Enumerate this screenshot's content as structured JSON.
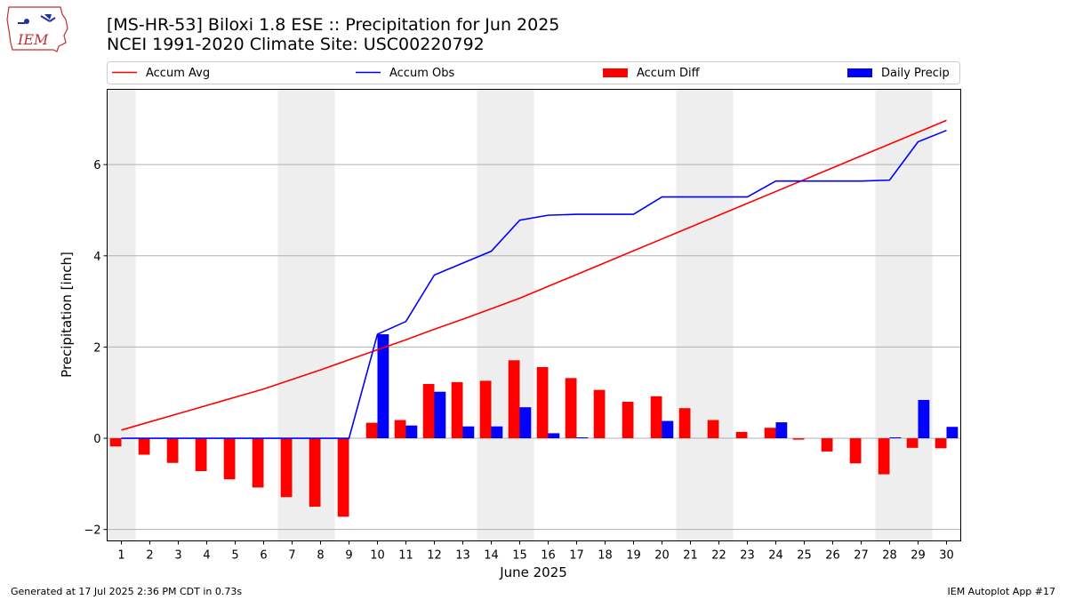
{
  "title_line1": "[MS-HR-53] Biloxi 1.8 ESE :: Precipitation for Jun 2025",
  "title_line2": "NCEI 1991-2020 Climate Site: USC00220792",
  "footer_left": "Generated at 17 Jul 2025 2:36 PM CDT in 0.73s",
  "footer_right": "IEM Autoplot App #17",
  "logo_text": "IEM",
  "colors": {
    "avg": "#ff0000",
    "obs": "#0000ff",
    "diff": "#ff0000",
    "daily": "#0000ff",
    "weekend_band": "#eeeeee",
    "grid": "#b0b0b0"
  },
  "chart_data": {
    "type": "bar",
    "xlabel": "June 2025",
    "ylabel": "Precipitation [inch]",
    "x": [
      1,
      2,
      3,
      4,
      5,
      6,
      7,
      8,
      9,
      10,
      11,
      12,
      13,
      14,
      15,
      16,
      17,
      18,
      19,
      20,
      21,
      22,
      23,
      24,
      25,
      26,
      27,
      28,
      29,
      30
    ],
    "xlim": [
      0.5,
      30.5
    ],
    "ylim": [
      -2.25,
      7.65
    ],
    "yticks": [
      -2,
      0,
      2,
      4,
      6
    ],
    "grid": true,
    "legend_position": "top, above plot",
    "weekend_bands": [
      [
        0.5,
        1.5
      ],
      [
        6.5,
        8.5
      ],
      [
        13.5,
        15.5
      ],
      [
        20.5,
        22.5
      ],
      [
        27.5,
        29.5
      ]
    ],
    "series": [
      {
        "name": "Accum Avg",
        "kind": "line",
        "values": [
          0.18,
          0.36,
          0.54,
          0.72,
          0.9,
          1.08,
          1.29,
          1.5,
          1.72,
          1.94,
          2.16,
          2.39,
          2.61,
          2.84,
          3.07,
          3.33,
          3.59,
          3.85,
          4.11,
          4.37,
          4.63,
          4.89,
          5.15,
          5.41,
          5.67,
          5.93,
          6.19,
          6.45,
          6.71,
          6.97
        ]
      },
      {
        "name": "Accum Obs",
        "kind": "line",
        "values": [
          0,
          0,
          0,
          0,
          0,
          0,
          0,
          0,
          0,
          2.28,
          2.56,
          3.58,
          3.84,
          4.1,
          4.78,
          4.89,
          4.91,
          4.91,
          4.91,
          5.29,
          5.29,
          5.29,
          5.29,
          5.64,
          5.64,
          5.64,
          5.64,
          5.66,
          6.5,
          6.75
        ]
      },
      {
        "name": "Accum Diff",
        "kind": "bar",
        "values": [
          -0.18,
          -0.36,
          -0.54,
          -0.72,
          -0.9,
          -1.08,
          -1.29,
          -1.5,
          -1.72,
          0.34,
          0.4,
          1.19,
          1.23,
          1.26,
          1.71,
          1.56,
          1.32,
          1.06,
          0.8,
          0.92,
          0.66,
          0.4,
          0.14,
          0.23,
          -0.03,
          -0.29,
          -0.55,
          -0.79,
          -0.21,
          -0.22
        ]
      },
      {
        "name": "Daily Precip",
        "kind": "bar",
        "values": [
          0,
          0,
          0,
          0,
          0,
          0,
          0,
          0,
          0,
          2.28,
          0.28,
          1.02,
          0.26,
          0.26,
          0.68,
          0.11,
          0.02,
          0,
          0,
          0.38,
          0,
          0,
          0,
          0.35,
          0,
          0,
          0,
          0.02,
          0.84,
          0.25
        ]
      }
    ]
  }
}
